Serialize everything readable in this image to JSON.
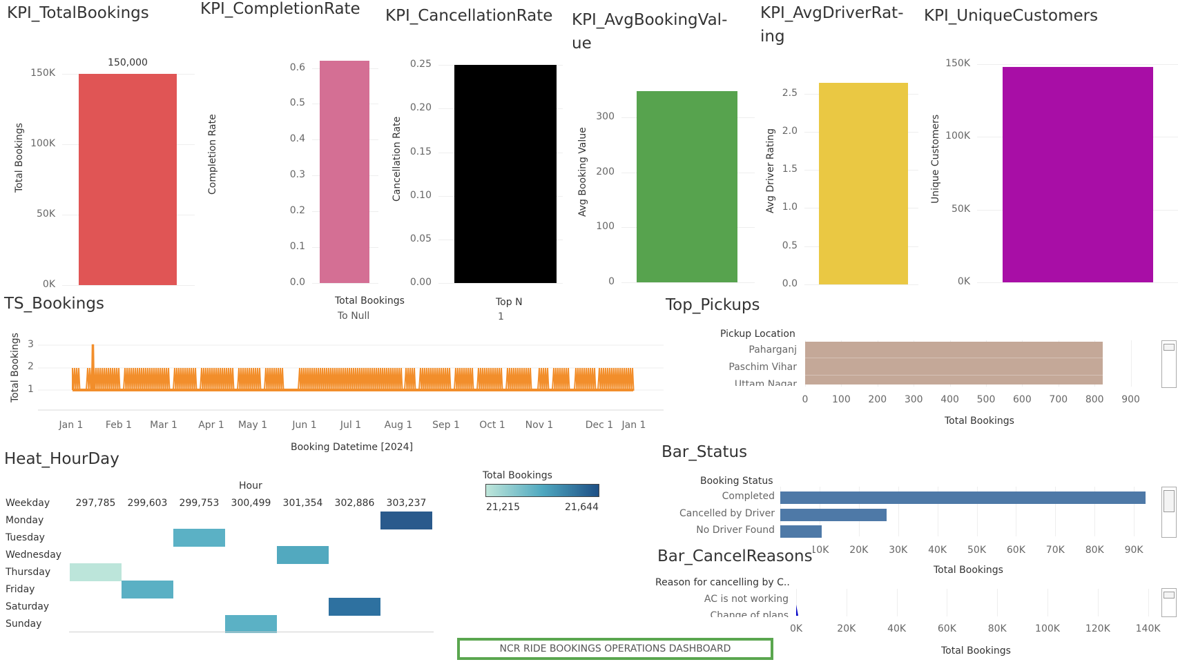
{
  "kpis": [
    {
      "id": "total_bookings",
      "title": "KPI_TotalBookings",
      "axis_title": "Total Bookings",
      "ticks": [
        "150K",
        "100K",
        "50K",
        "0K"
      ],
      "value": 150000,
      "data_label": "150,000",
      "max": 160000,
      "color": "#e05555"
    },
    {
      "id": "completion_rate",
      "title": "KPI_CompletionRate",
      "axis_title": "Completion Rate",
      "ticks": [
        "0.6",
        "0.5",
        "0.4",
        "0.3",
        "0.2",
        "0.1",
        "0.0"
      ],
      "value": 0.62,
      "max": 0.68,
      "color": "#d46f94"
    },
    {
      "id": "cancellation_rate",
      "title": "KPI_CancellationRate",
      "axis_title": "Cancellation Rate",
      "ticks": [
        "0.25",
        "0.20",
        "0.15",
        "0.10",
        "0.05",
        "0.00"
      ],
      "value": 0.25,
      "max": 0.27,
      "color": "#000000"
    },
    {
      "id": "avg_booking_value",
      "title": "KPI_AvgBookingVal-",
      "title_line2": "ue",
      "axis_title": "Avg Booking Value",
      "ticks": [
        "300",
        "200",
        "100",
        "0"
      ],
      "value": 348,
      "max": 380,
      "color": "#57a34e"
    },
    {
      "id": "avg_driver_rating",
      "title": "KPI_AvgDriverRat-",
      "title_line2": "ing",
      "axis_title": "Avg Driver Rating",
      "ticks": [
        "2.5",
        "2.0",
        "1.5",
        "1.0",
        "0.5",
        "0.0"
      ],
      "value": 2.64,
      "max": 2.85,
      "color": "#eac843"
    },
    {
      "id": "unique_customers",
      "title": "KPI_UniqueCustomers",
      "axis_title": "Unique Customers",
      "ticks": [
        "150K",
        "100K",
        "50K",
        "0K"
      ],
      "value": 148000,
      "max": 160000,
      "color": "#a80ea6"
    }
  ],
  "filters": {
    "total_bookings": {
      "label": "Total Bookings",
      "value": "To Null"
    },
    "top_n": {
      "label": "Top N",
      "value": "1"
    }
  },
  "ts": {
    "title": "TS_Bookings",
    "ylabel": "Total Bookings",
    "xlabel": "Booking Datetime [2024]",
    "yticks": [
      "3",
      "2",
      "1"
    ],
    "xticks": [
      "Jan 1",
      "Feb 1",
      "Mar 1",
      "Apr 1",
      "May 1",
      "Jun 1",
      "Jul 1",
      "Aug 1",
      "Sep 1",
      "Oct 1",
      "Nov 1",
      "Dec 1",
      "Jan 1"
    ],
    "color": "#f28e2b"
  },
  "top_pickups": {
    "title": "Top_Pickups",
    "header": "Pickup Location",
    "locations": [
      "Paharganj",
      "Paschim Vihar",
      "Uttam Nagar"
    ],
    "value": 822,
    "xticks": [
      "0",
      "100",
      "200",
      "300",
      "400",
      "500",
      "600",
      "700",
      "800",
      "900"
    ],
    "xlabel": "Total Bookings",
    "color": "#c4a898"
  },
  "heat": {
    "title": "Heat_HourDay",
    "col_header": "Hour",
    "row_header": "Weekday",
    "hours": [
      "297,785",
      "299,603",
      "299,753",
      "300,499",
      "301,354",
      "302,886",
      "303,237"
    ],
    "days": [
      "Monday",
      "Tuesday",
      "Wednesday",
      "Thursday",
      "Friday",
      "Saturday",
      "Sunday"
    ],
    "cells": [
      {
        "day": "Monday",
        "hour_index": 6,
        "value": 21644,
        "color": "#2a5a8c"
      },
      {
        "day": "Tuesday",
        "hour_index": 2,
        "value": 21420,
        "color": "#5bb1c5"
      },
      {
        "day": "Wednesday",
        "hour_index": 4,
        "value": 21430,
        "color": "#52a9bf"
      },
      {
        "day": "Thursday",
        "hour_index": 0,
        "value": 21215,
        "color": "#bce5da"
      },
      {
        "day": "Friday",
        "hour_index": 1,
        "value": 21430,
        "color": "#5ab0c4"
      },
      {
        "day": "Saturday",
        "hour_index": 5,
        "value": 21560,
        "color": "#2e71a0"
      },
      {
        "day": "Sunday",
        "hour_index": 3,
        "value": 21420,
        "color": "#5bb1c5"
      }
    ],
    "legend_title": "Total Bookings",
    "legend_min": "21,215",
    "legend_max": "21,644"
  },
  "bar_status": {
    "title": "Bar_Status",
    "header": "Booking Status",
    "categories": [
      "Completed",
      "Cancelled by Driver",
      "No Driver Found"
    ],
    "values": [
      93000,
      27000,
      10500
    ],
    "xticks": [
      "0K",
      "10K",
      "20K",
      "30K",
      "40K",
      "50K",
      "60K",
      "70K",
      "80K",
      "90K"
    ],
    "xlabel": "Total Bookings",
    "color": "#4e79a7"
  },
  "bar_cancel": {
    "title": "Bar_CancelReasons",
    "header": "Reason for cancelling by C..",
    "categories": [
      "AC is not working",
      "Change of plans"
    ],
    "xticks": [
      "0K",
      "20K",
      "40K",
      "60K",
      "80K",
      "100K",
      "120K",
      "140K"
    ],
    "xlabel": "Total Bookings"
  },
  "footer": "NCR RIDE BOOKINGS OPERATIONS DASHBOARD",
  "chart_data": [
    {
      "type": "bar",
      "title": "KPI_TotalBookings",
      "ylabel": "Total Bookings",
      "values": [
        150000
      ],
      "ylim": [
        0,
        160000
      ]
    },
    {
      "type": "bar",
      "title": "KPI_CompletionRate",
      "ylabel": "Completion Rate",
      "values": [
        0.62
      ],
      "ylim": [
        0,
        0.68
      ]
    },
    {
      "type": "bar",
      "title": "KPI_CancellationRate",
      "ylabel": "Cancellation Rate",
      "values": [
        0.25
      ],
      "ylim": [
        0,
        0.27
      ]
    },
    {
      "type": "bar",
      "title": "KPI_AvgBookingValue",
      "ylabel": "Avg Booking Value",
      "values": [
        348
      ],
      "ylim": [
        0,
        380
      ]
    },
    {
      "type": "bar",
      "title": "KPI_AvgDriverRating",
      "ylabel": "Avg Driver Rating",
      "values": [
        2.64
      ],
      "ylim": [
        0,
        2.85
      ]
    },
    {
      "type": "bar",
      "title": "KPI_UniqueCustomers",
      "ylabel": "Unique Customers",
      "values": [
        148000
      ],
      "ylim": [
        0,
        160000
      ]
    },
    {
      "type": "line",
      "title": "TS_Bookings",
      "xlabel": "Booking Datetime [2024]",
      "ylabel": "Total Bookings",
      "ylim": [
        1,
        3
      ],
      "x": [
        "Jan 1",
        "Dec 31"
      ],
      "values": [
        1,
        2
      ]
    },
    {
      "type": "bar",
      "title": "Top_Pickups",
      "categories": [
        "Paharganj",
        "Paschim Vihar",
        "Uttam Nagar"
      ],
      "values": [
        822,
        822,
        822
      ],
      "xlabel": "Total Bookings"
    },
    {
      "type": "heatmap",
      "title": "Heat_HourDay",
      "rows": [
        "Monday",
        "Tuesday",
        "Wednesday",
        "Thursday",
        "Friday",
        "Saturday",
        "Sunday"
      ],
      "columns": [
        "297,785",
        "299,603",
        "299,753",
        "300,499",
        "301,354",
        "302,886",
        "303,237"
      ]
    },
    {
      "type": "bar",
      "title": "Bar_Status",
      "categories": [
        "Completed",
        "Cancelled by Driver",
        "No Driver Found"
      ],
      "values": [
        93000,
        27000,
        10500
      ],
      "xlabel": "Total Bookings"
    },
    {
      "type": "bar",
      "title": "Bar_CancelReasons",
      "categories": [
        "AC is not working",
        "Change of plans"
      ],
      "xlabel": "Total Bookings"
    }
  ]
}
